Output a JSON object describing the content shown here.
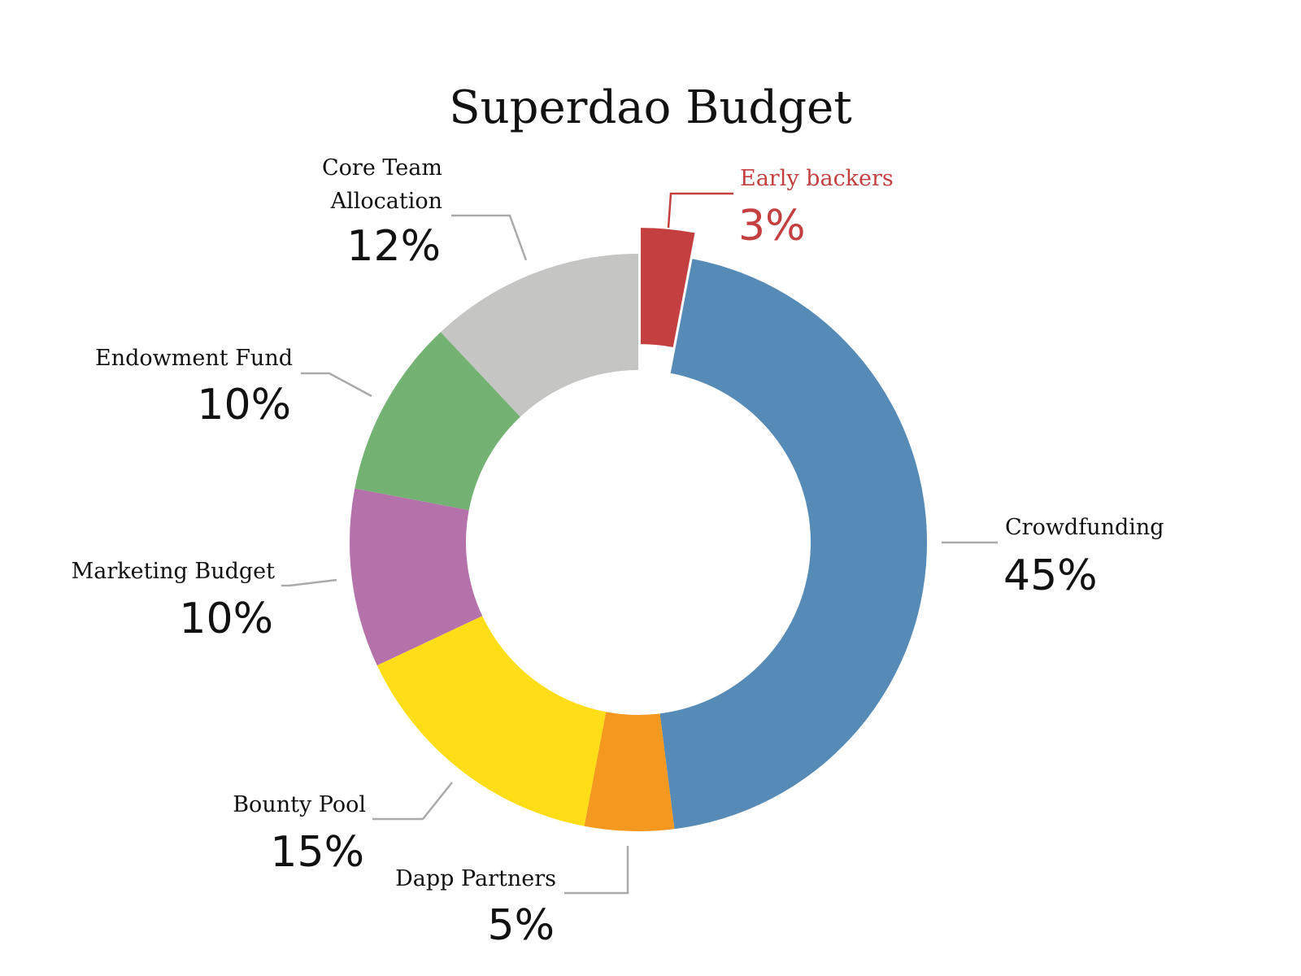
{
  "chart_data": {
    "type": "pie",
    "style": "donut",
    "title": "Superdao Budget",
    "start_angle_deg_clockwise_from_top": 0,
    "slices": [
      {
        "label": "Early backers",
        "value": 3,
        "display": "3%",
        "color": "#C44040",
        "exploded": true,
        "label_color": "#C44040"
      },
      {
        "label": "Crowdfunding",
        "value": 45,
        "display": "45%",
        "color": "#568BB7",
        "exploded": false,
        "label_color": "#111111"
      },
      {
        "label": "Dapp Partners",
        "value": 5,
        "display": "5%",
        "color": "#F59820",
        "exploded": false,
        "label_color": "#111111"
      },
      {
        "label": "Bounty Pool",
        "value": 15,
        "display": "15%",
        "color": "#FFDD17",
        "exploded": false,
        "label_color": "#111111"
      },
      {
        "label": "Marketing Budget",
        "value": 10,
        "display": "10%",
        "color": "#B571AA",
        "exploded": false,
        "label_color": "#111111"
      },
      {
        "label": "Endowment Fund",
        "value": 10,
        "display": "10%",
        "color": "#73B273",
        "exploded": false,
        "label_color": "#111111"
      },
      {
        "label": "Core Team Allocation",
        "value": 12,
        "display": "12%",
        "color": "#C5C5C3",
        "exploded": false,
        "label_color": "#111111"
      }
    ],
    "leader_line_color": "#AAAAAA",
    "legend": "none"
  }
}
